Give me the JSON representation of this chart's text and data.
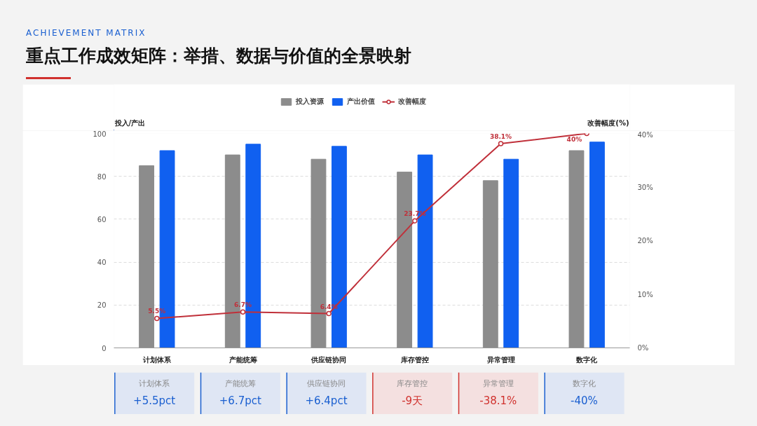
{
  "chart_data": [
    {
      "type": "bar",
      "title": "重点工作成效矩阵：举措、数据与价值的全景映射",
      "subtitle": "ACHIEVEMENT MATRIX",
      "ylabel": "投入/产出",
      "y2label": "改善幅度(%)",
      "categories": [
        "计划体系",
        "产能统筹",
        "供应链协同",
        "库存管控",
        "异常管理",
        "数字化"
      ],
      "series": [
        {
          "name": "投入资源",
          "color": "#8c8c8c",
          "values": [
            85,
            90,
            88,
            82,
            78,
            92
          ]
        },
        {
          "name": "产出价值",
          "color": "#1060f0",
          "values": [
            92,
            95,
            94,
            90,
            88,
            96
          ]
        },
        {
          "name": "改善幅度",
          "type": "line",
          "axis": "y2",
          "color": "#c0303a",
          "marker": "circle",
          "values": [
            5.5,
            6.7,
            6.4,
            23.7,
            38.1,
            40
          ],
          "value_labels": [
            "5.5%",
            "6.7%",
            "6.4%",
            "23.7%",
            "38.1%",
            "40%"
          ]
        }
      ],
      "ylim": [
        0,
        100
      ],
      "yticks": [
        0,
        20,
        40,
        60,
        80,
        100
      ],
      "y2lim": [
        0,
        40
      ],
      "y2ticks": [
        {
          "value": 0,
          "label": "0%"
        },
        {
          "value": 10,
          "label": "10%"
        },
        {
          "value": 20,
          "label": "20%"
        },
        {
          "value": 30,
          "label": "30%"
        },
        {
          "value": 40,
          "label": "40%"
        }
      ],
      "grid": "y",
      "legend": "top"
    },
    {
      "type": "other",
      "annotations": [
        "计划体系",
        "+5.5pct",
        "产能统筹",
        "+6.7pct",
        "供应链协同",
        "+6.4pct",
        "库存管控",
        "-9天",
        "异常管理",
        "-38.1%",
        "数字化",
        "-40%"
      ],
      "colors": [
        "#1a5fd0",
        "#1a5fd0",
        "#1a5fd0",
        "#d0312d",
        "#d0312d",
        "#1a5fd0"
      ]
    }
  ]
}
